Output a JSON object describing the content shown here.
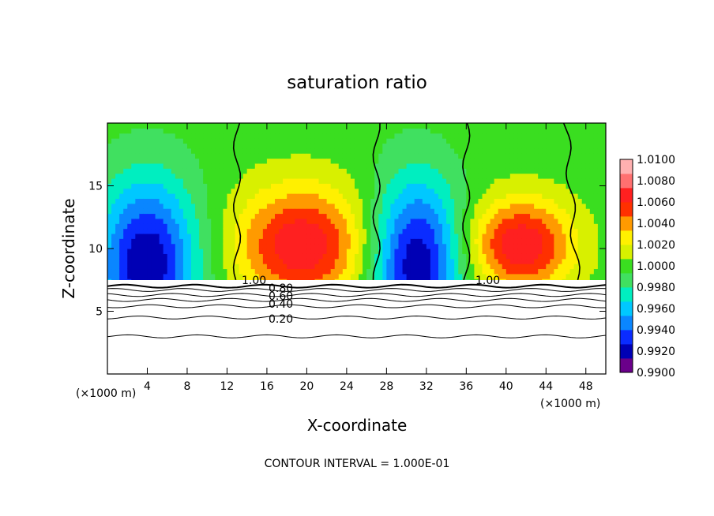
{
  "chart_data": {
    "type": "heatmap",
    "title": "saturation ratio",
    "xlabel": "X-coordinate",
    "ylabel": "Z-coordinate",
    "x_unit": "(×1000 m)",
    "z_unit": "(×1000 m)",
    "footer": "CONTOUR INTERVAL = 1.000E-01",
    "xlim": [
      0,
      50
    ],
    "ylim": [
      0,
      20
    ],
    "x_ticks": [
      4,
      8,
      12,
      16,
      20,
      24,
      28,
      32,
      36,
      40,
      44,
      48
    ],
    "y_ticks": [
      5,
      10,
      15
    ],
    "colorbar": {
      "min": 0.99,
      "max": 1.01,
      "ticks": [
        "1.0100",
        "1.0080",
        "1.0060",
        "1.0040",
        "1.0020",
        "1.0000",
        "0.9980",
        "0.9960",
        "0.9940",
        "0.9920",
        "0.9900"
      ],
      "colors": [
        "#6a008a",
        "#0000b5",
        "#0a2cff",
        "#0a86ff",
        "#00c8ff",
        "#00eec0",
        "#40e060",
        "#3ade20",
        "#d8f000",
        "#fff000",
        "#ff9a00",
        "#ff3000",
        "#ff2020",
        "#ff7070",
        "#ffb0b0"
      ]
    },
    "contour_labels": [
      "1.00",
      "0.80",
      "0.60",
      "0.40",
      "0.20",
      "1.00"
    ],
    "cloud_base_z": 7.3,
    "below_cloud_contours_z": [
      7.0,
      6.7,
      6.3,
      5.9,
      5.4,
      4.5,
      3.0
    ],
    "warm_columns": [
      {
        "center_x": 19.5,
        "halfwidth_x": 6.5,
        "top_z": 12
      },
      {
        "center_x": 41.5,
        "halfwidth_x": 5.2,
        "top_z": 11
      }
    ],
    "cool_columns": [
      {
        "center_x": 4.0,
        "halfwidth_x": 5.0,
        "top_z": 14
      },
      {
        "center_x": 31.0,
        "halfwidth_x": 4.5,
        "top_z": 14
      }
    ],
    "boundary_lines_x": [
      13.0,
      27.0,
      36.0,
      46.0
    ]
  }
}
